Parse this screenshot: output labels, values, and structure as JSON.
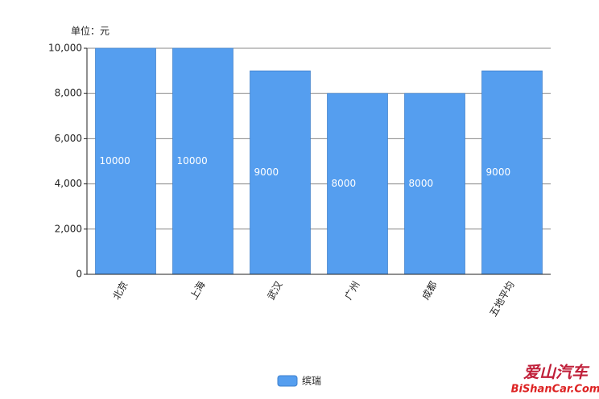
{
  "chart_data": {
    "type": "bar",
    "unit_label": "单位：元",
    "categories": [
      "北京",
      "上海",
      "武汉",
      "广州",
      "成都",
      "五地平均"
    ],
    "series": [
      {
        "name": "缤瑞",
        "color": "#559eef",
        "values": [
          10000,
          10000,
          9000,
          8000,
          8000,
          9000
        ]
      }
    ],
    "ylim": [
      0,
      10000
    ],
    "yticks": [
      0,
      {
        "value": 2000,
        "label": "2,000"
      },
      {
        "value": 4000,
        "label": "4,000"
      },
      {
        "value": 6000,
        "label": "6,000"
      },
      {
        "value": 8000,
        "label": "8,000"
      },
      {
        "value": 10000,
        "label": "10,000"
      }
    ],
    "grid": true
  },
  "watermark": {
    "title": "爱山汽车",
    "url": "BiShanCar.Com"
  }
}
